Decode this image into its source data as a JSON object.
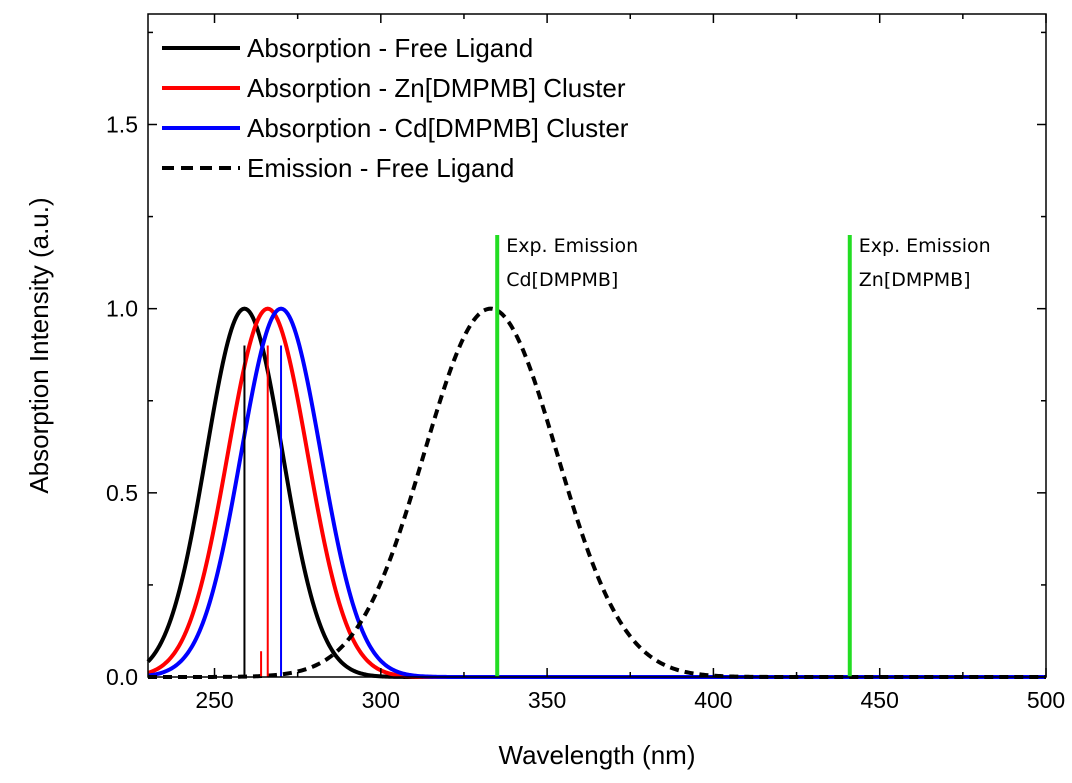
{
  "chart_data": {
    "type": "line",
    "title": "",
    "xlabel": "Wavelength (nm)",
    "ylabel": "Absorption Intensity (a.u.)",
    "xlim": [
      230,
      500
    ],
    "ylim": [
      0,
      1.8
    ],
    "x_ticks": [
      250,
      300,
      350,
      400,
      450,
      500
    ],
    "y_ticks": [
      0.0,
      0.5,
      1.0,
      1.5
    ],
    "x_tick_labels": [
      "250",
      "300",
      "350",
      "400",
      "450",
      "500"
    ],
    "y_tick_labels": [
      "0.0",
      "0.5",
      "1.0",
      "1.5"
    ],
    "grid": false,
    "legend_position": "top-left",
    "series": [
      {
        "name": "Absorption - Free Ligand",
        "color": "#000000",
        "style": "solid",
        "peak_x": 259,
        "peak_y": 1.0,
        "sigma": 11.5
      },
      {
        "name": "Absorption - Zn[DMPMB] Cluster",
        "color": "#ff0000",
        "style": "solid",
        "peak_x": 266,
        "peak_y": 1.0,
        "sigma": 12
      },
      {
        "name": "Absorption - Cd[DMPMB] Cluster",
        "color": "#0000ff",
        "style": "solid",
        "peak_x": 270,
        "peak_y": 1.0,
        "sigma": 12
      },
      {
        "name": "Emission - Free Ligand",
        "color": "#000000",
        "style": "dashed",
        "peak_x": 333,
        "peak_y": 1.0,
        "sigma": 20
      }
    ],
    "stick_transitions": [
      {
        "x": 259,
        "y": 0.9,
        "color": "#000000"
      },
      {
        "x": 264,
        "y": 0.07,
        "color": "#ff0000"
      },
      {
        "x": 266,
        "y": 0.9,
        "color": "#ff0000"
      },
      {
        "x": 270,
        "y": 0.9,
        "color": "#0000ff"
      }
    ],
    "markers": [
      {
        "x": 335,
        "y": 1.2,
        "color": "#22dd22",
        "label_line1": "Exp. Emission",
        "label_line2": "Cd[DMPMB]"
      },
      {
        "x": 441,
        "y": 1.2,
        "color": "#22dd22",
        "label_line1": "Exp. Emission",
        "label_line2": "Zn[DMPMB]"
      }
    ]
  }
}
